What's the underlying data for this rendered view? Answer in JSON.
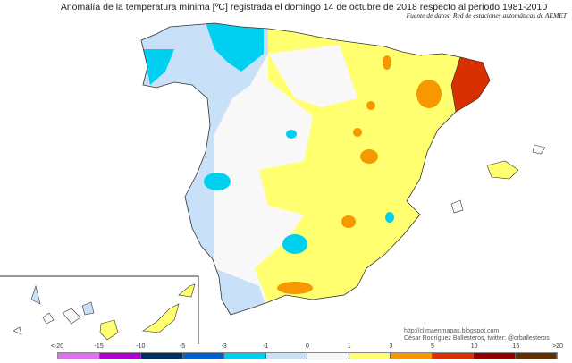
{
  "title": "Anomalía de la temperatura mínima [ºC] registrada el domingo 14 de octubre de 2018 respecto al periodo 1981-2010",
  "source": "Fuente de datos: Red de estaciones automáticas de AEMET",
  "credits": {
    "url": "http://climaenmapas.blogspot.com",
    "author": "César Rodríguez Ballesteros, twitter: @crballesteros"
  },
  "legend": {
    "ticks": [
      "<-20",
      "-15",
      "-10",
      "-5",
      "-3",
      "-1",
      "0",
      "1",
      "3",
      "5",
      "10",
      "15",
      ">20"
    ],
    "colors": [
      "#e070f0",
      "#b000d0",
      "#00305f",
      "#0060d0",
      "#00d0f0",
      "#c8e0f8",
      "#f8f8f8",
      "#ffff70",
      "#f89800",
      "#d83000",
      "#900000",
      "#603000"
    ]
  }
}
